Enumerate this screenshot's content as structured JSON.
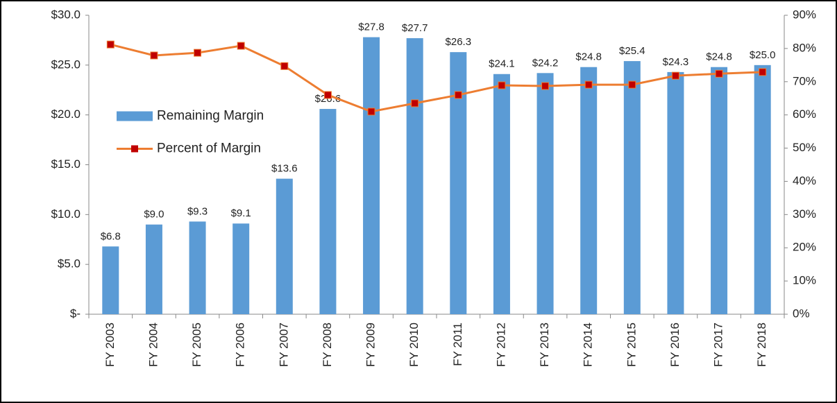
{
  "chart_data": {
    "type": "bar_line",
    "categories": [
      "FY 2003",
      "FY 2004",
      "FY 2005",
      "FY 2006",
      "FY 2007",
      "FY 2008",
      "FY 2009",
      "FY 2010",
      "FY 2011",
      "FY 2012",
      "FY 2013",
      "FY 2014",
      "FY 2015",
      "FY 2016",
      "FY 2017",
      "FY 2018"
    ],
    "series": [
      {
        "name": "Remaining Margin",
        "type": "bar",
        "color": "#5b9bd5",
        "values": [
          6.8,
          9.0,
          9.3,
          9.1,
          13.6,
          20.6,
          27.8,
          27.7,
          26.3,
          24.1,
          24.2,
          24.8,
          25.4,
          24.3,
          24.8,
          25.0
        ],
        "value_labels": [
          "$6.8",
          "$9.0",
          "$9.3",
          "$9.1",
          "$13.6",
          "$20.6",
          "$27.8",
          "$27.7",
          "$26.3",
          "$24.1",
          "$24.2",
          "$24.8",
          "$25.4",
          "$24.3",
          "$24.8",
          "$25.0"
        ]
      },
      {
        "name": "Percent of Margin",
        "type": "line",
        "axis": "y2",
        "color": "#ed7d31",
        "marker_color": "#c00000",
        "values": [
          81.2,
          77.9,
          78.7,
          80.8,
          74.7,
          66.0,
          61.0,
          63.5,
          66.0,
          68.9,
          68.7,
          69.1,
          69.1,
          71.8,
          72.4,
          72.9
        ]
      }
    ],
    "ylim": [
      0,
      30
    ],
    "yticks": [
      {
        "value": 0,
        "label": "$-"
      },
      {
        "value": 5,
        "label": "$5.0"
      },
      {
        "value": 10,
        "label": "$10.0"
      },
      {
        "value": 15,
        "label": "$15.0"
      },
      {
        "value": 20,
        "label": "$20.0"
      },
      {
        "value": 25,
        "label": "$25.0"
      },
      {
        "value": 30,
        "label": "$30.0"
      }
    ],
    "y2lim": [
      0,
      90
    ],
    "y2ticks": [
      {
        "value": 0,
        "label": "0%"
      },
      {
        "value": 10,
        "label": "10%"
      },
      {
        "value": 20,
        "label": "20%"
      },
      {
        "value": 30,
        "label": "30%"
      },
      {
        "value": 40,
        "label": "40%"
      },
      {
        "value": 50,
        "label": "50%"
      },
      {
        "value": 60,
        "label": "60%"
      },
      {
        "value": 70,
        "label": "70%"
      },
      {
        "value": 80,
        "label": "80%"
      },
      {
        "value": 90,
        "label": "90%"
      }
    ],
    "grid": false,
    "legend": "center left"
  }
}
